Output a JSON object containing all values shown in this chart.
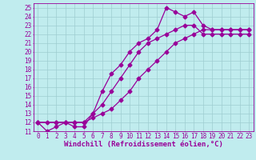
{
  "xlabel": "Windchill (Refroidissement éolien,°C)",
  "bg_color": "#c0ecee",
  "line_color": "#990099",
  "grid_color": "#9ecdd0",
  "xlim": [
    -0.5,
    23.5
  ],
  "ylim": [
    11,
    25.5
  ],
  "xticks": [
    0,
    1,
    2,
    3,
    4,
    5,
    6,
    7,
    8,
    9,
    10,
    11,
    12,
    13,
    14,
    15,
    16,
    17,
    18,
    19,
    20,
    21,
    22,
    23
  ],
  "yticks": [
    11,
    12,
    13,
    14,
    15,
    16,
    17,
    18,
    19,
    20,
    21,
    22,
    23,
    24,
    25
  ],
  "line1_x": [
    0,
    1,
    2,
    3,
    4,
    5,
    6,
    7,
    8,
    9,
    10,
    11,
    12,
    13,
    14,
    15,
    16,
    17,
    18,
    19,
    20,
    21,
    22,
    23
  ],
  "line1_y": [
    12,
    11,
    11.5,
    12,
    11.5,
    11.5,
    13,
    15.5,
    17.5,
    18.5,
    20,
    21,
    21.5,
    22.5,
    25,
    24.5,
    24,
    24.5,
    23,
    22.5,
    22.5,
    22.5,
    22.5,
    22.5
  ],
  "line2_x": [
    0,
    1,
    2,
    3,
    4,
    5,
    6,
    7,
    8,
    9,
    10,
    11,
    12,
    13,
    14,
    15,
    16,
    17,
    18,
    19,
    20,
    21,
    22,
    23
  ],
  "line2_y": [
    12,
    12,
    12,
    12,
    12,
    12,
    13,
    14,
    15.5,
    17,
    18.5,
    20,
    21,
    21.5,
    22,
    22.5,
    23,
    23,
    22,
    22,
    22,
    22,
    22,
    22
  ],
  "line3_x": [
    0,
    2,
    3,
    4,
    5,
    6,
    7,
    8,
    9,
    10,
    11,
    12,
    13,
    14,
    15,
    16,
    17,
    18,
    19,
    20,
    21,
    22,
    23
  ],
  "line3_y": [
    12,
    12,
    12,
    12,
    12,
    12.5,
    13,
    13.5,
    14.5,
    15.5,
    17,
    18,
    19,
    20,
    21,
    21.5,
    22,
    22.5,
    22.5,
    22.5,
    22.5,
    22.5,
    22.5
  ],
  "marker": "D",
  "markersize": 2.5,
  "linewidth": 0.9,
  "xlabel_fontsize": 6.5,
  "tick_fontsize": 5.5
}
